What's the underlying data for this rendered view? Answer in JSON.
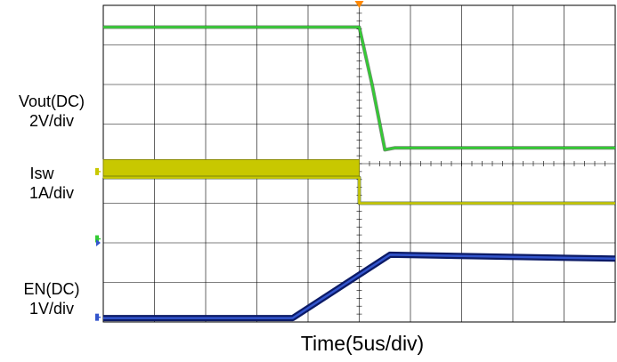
{
  "chart_data": {
    "type": "line",
    "xlabel": "Time(5us/div)",
    "x_divisions": 10,
    "y_divisions": 8,
    "grid": true,
    "trigger_marker_x_div": 5,
    "series": [
      {
        "label_line1": "Vout(DC)",
        "label_line2": "2V/div",
        "color": "#33cc33",
        "ground_div": 2.1,
        "points_div": [
          [
            0,
            7.45
          ],
          [
            5.0,
            7.45
          ],
          [
            5.25,
            6.0
          ],
          [
            5.5,
            4.35
          ],
          [
            5.7,
            4.4
          ],
          [
            10,
            4.4
          ]
        ]
      },
      {
        "label_line1": "Isw",
        "label_line2": "1A/div",
        "color": "#c8c800",
        "ground_div": -0.1,
        "band_div": [
          0,
          5.0,
          3.65,
          4.1
        ],
        "points_div": [
          [
            0,
            3.65
          ],
          [
            5.0,
            3.65
          ],
          [
            5.0,
            3.0
          ],
          [
            10,
            3.0
          ]
        ]
      },
      {
        "label_line1": "EN(DC)",
        "label_line2": "1V/div",
        "color": "#3355cc",
        "ground_div": -5.1,
        "points_div": [
          [
            0,
            0.1
          ],
          [
            3.7,
            0.1
          ],
          [
            5.6,
            1.7
          ],
          [
            10,
            1.6
          ]
        ]
      }
    ]
  }
}
